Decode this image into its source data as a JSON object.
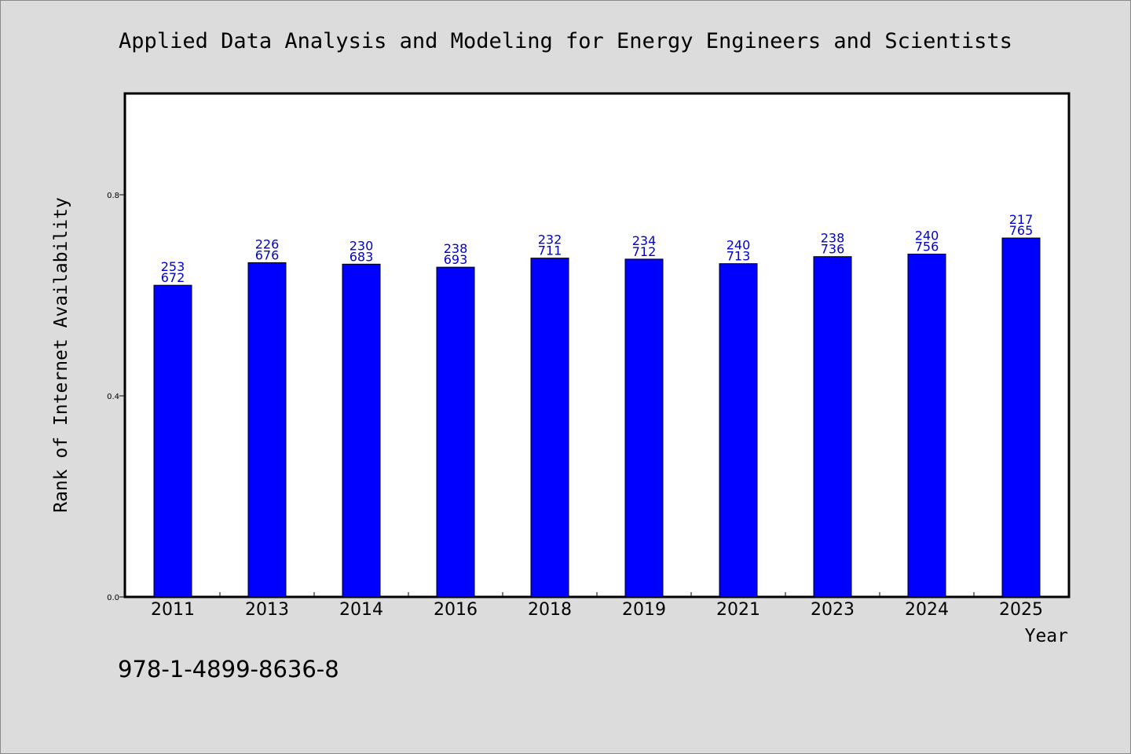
{
  "footer": {
    "code": "978-1-4899-8636-8"
  },
  "chart_data": {
    "type": "bar",
    "title": "Applied Data Analysis and Modeling for Energy Engineers and Scientists",
    "xlabel": "Year",
    "ylabel": "Rank of Internet Availability",
    "ylim": [
      0.0,
      1.0
    ],
    "yticks": [
      "0.0",
      "0.4",
      "0.8"
    ],
    "grid": false,
    "legend": "none",
    "bar_color": "#0000ff",
    "label_color": "#0000cc",
    "categories": [
      "2011",
      "2013",
      "2014",
      "2016",
      "2018",
      "2019",
      "2021",
      "2023",
      "2024",
      "2025"
    ],
    "values": [
      0.62,
      0.665,
      0.662,
      0.656,
      0.674,
      0.672,
      0.663,
      0.677,
      0.682,
      0.714
    ],
    "data_labels": [
      [
        "253",
        "672"
      ],
      [
        "226",
        "676"
      ],
      [
        "230",
        "683"
      ],
      [
        "238",
        "693"
      ],
      [
        "232",
        "711"
      ],
      [
        "234",
        "712"
      ],
      [
        "240",
        "713"
      ],
      [
        "238",
        "736"
      ],
      [
        "240",
        "756"
      ],
      [
        "217",
        "765"
      ]
    ]
  }
}
